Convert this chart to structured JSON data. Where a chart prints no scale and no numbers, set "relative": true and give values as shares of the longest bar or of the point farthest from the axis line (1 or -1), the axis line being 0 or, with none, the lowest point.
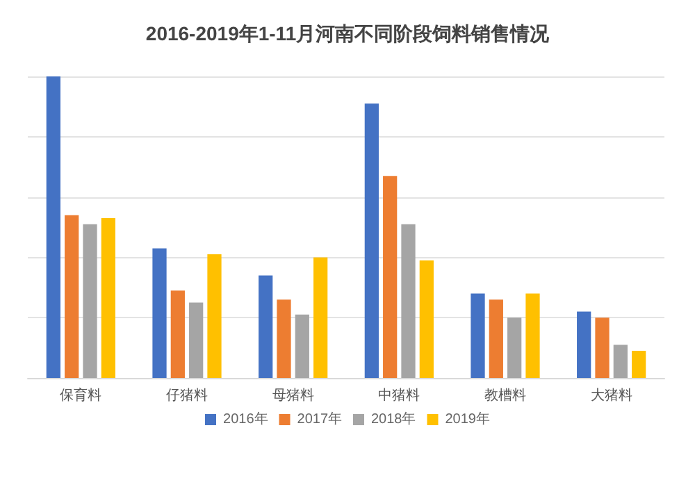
{
  "chart_data": {
    "type": "bar",
    "title": "2016-2019年1-11月河南不同阶段饲料销售情况",
    "relative": true,
    "categories": [
      "保育料",
      "仔猪料",
      "母猪料",
      "中猪料",
      "教槽料",
      "大猪料"
    ],
    "series": [
      {
        "name": "2016年",
        "color": "#4472c4",
        "values": [
          1,
          0.43,
          0.34,
          0.91,
          0.28,
          0.22
        ]
      },
      {
        "name": "2017年",
        "color": "#ed7d31",
        "values": [
          0.54,
          0.29,
          0.26,
          0.67,
          0.26,
          0.2
        ]
      },
      {
        "name": "2018年",
        "color": "#a5a5a5",
        "values": [
          0.51,
          0.25,
          0.21,
          0.51,
          0.2,
          0.11
        ]
      },
      {
        "name": "2019年",
        "color": "#ffc000",
        "values": [
          0.53,
          0.41,
          0.4,
          0.39,
          0.28,
          0.09
        ]
      }
    ],
    "grid": true,
    "legend": "bottom"
  }
}
